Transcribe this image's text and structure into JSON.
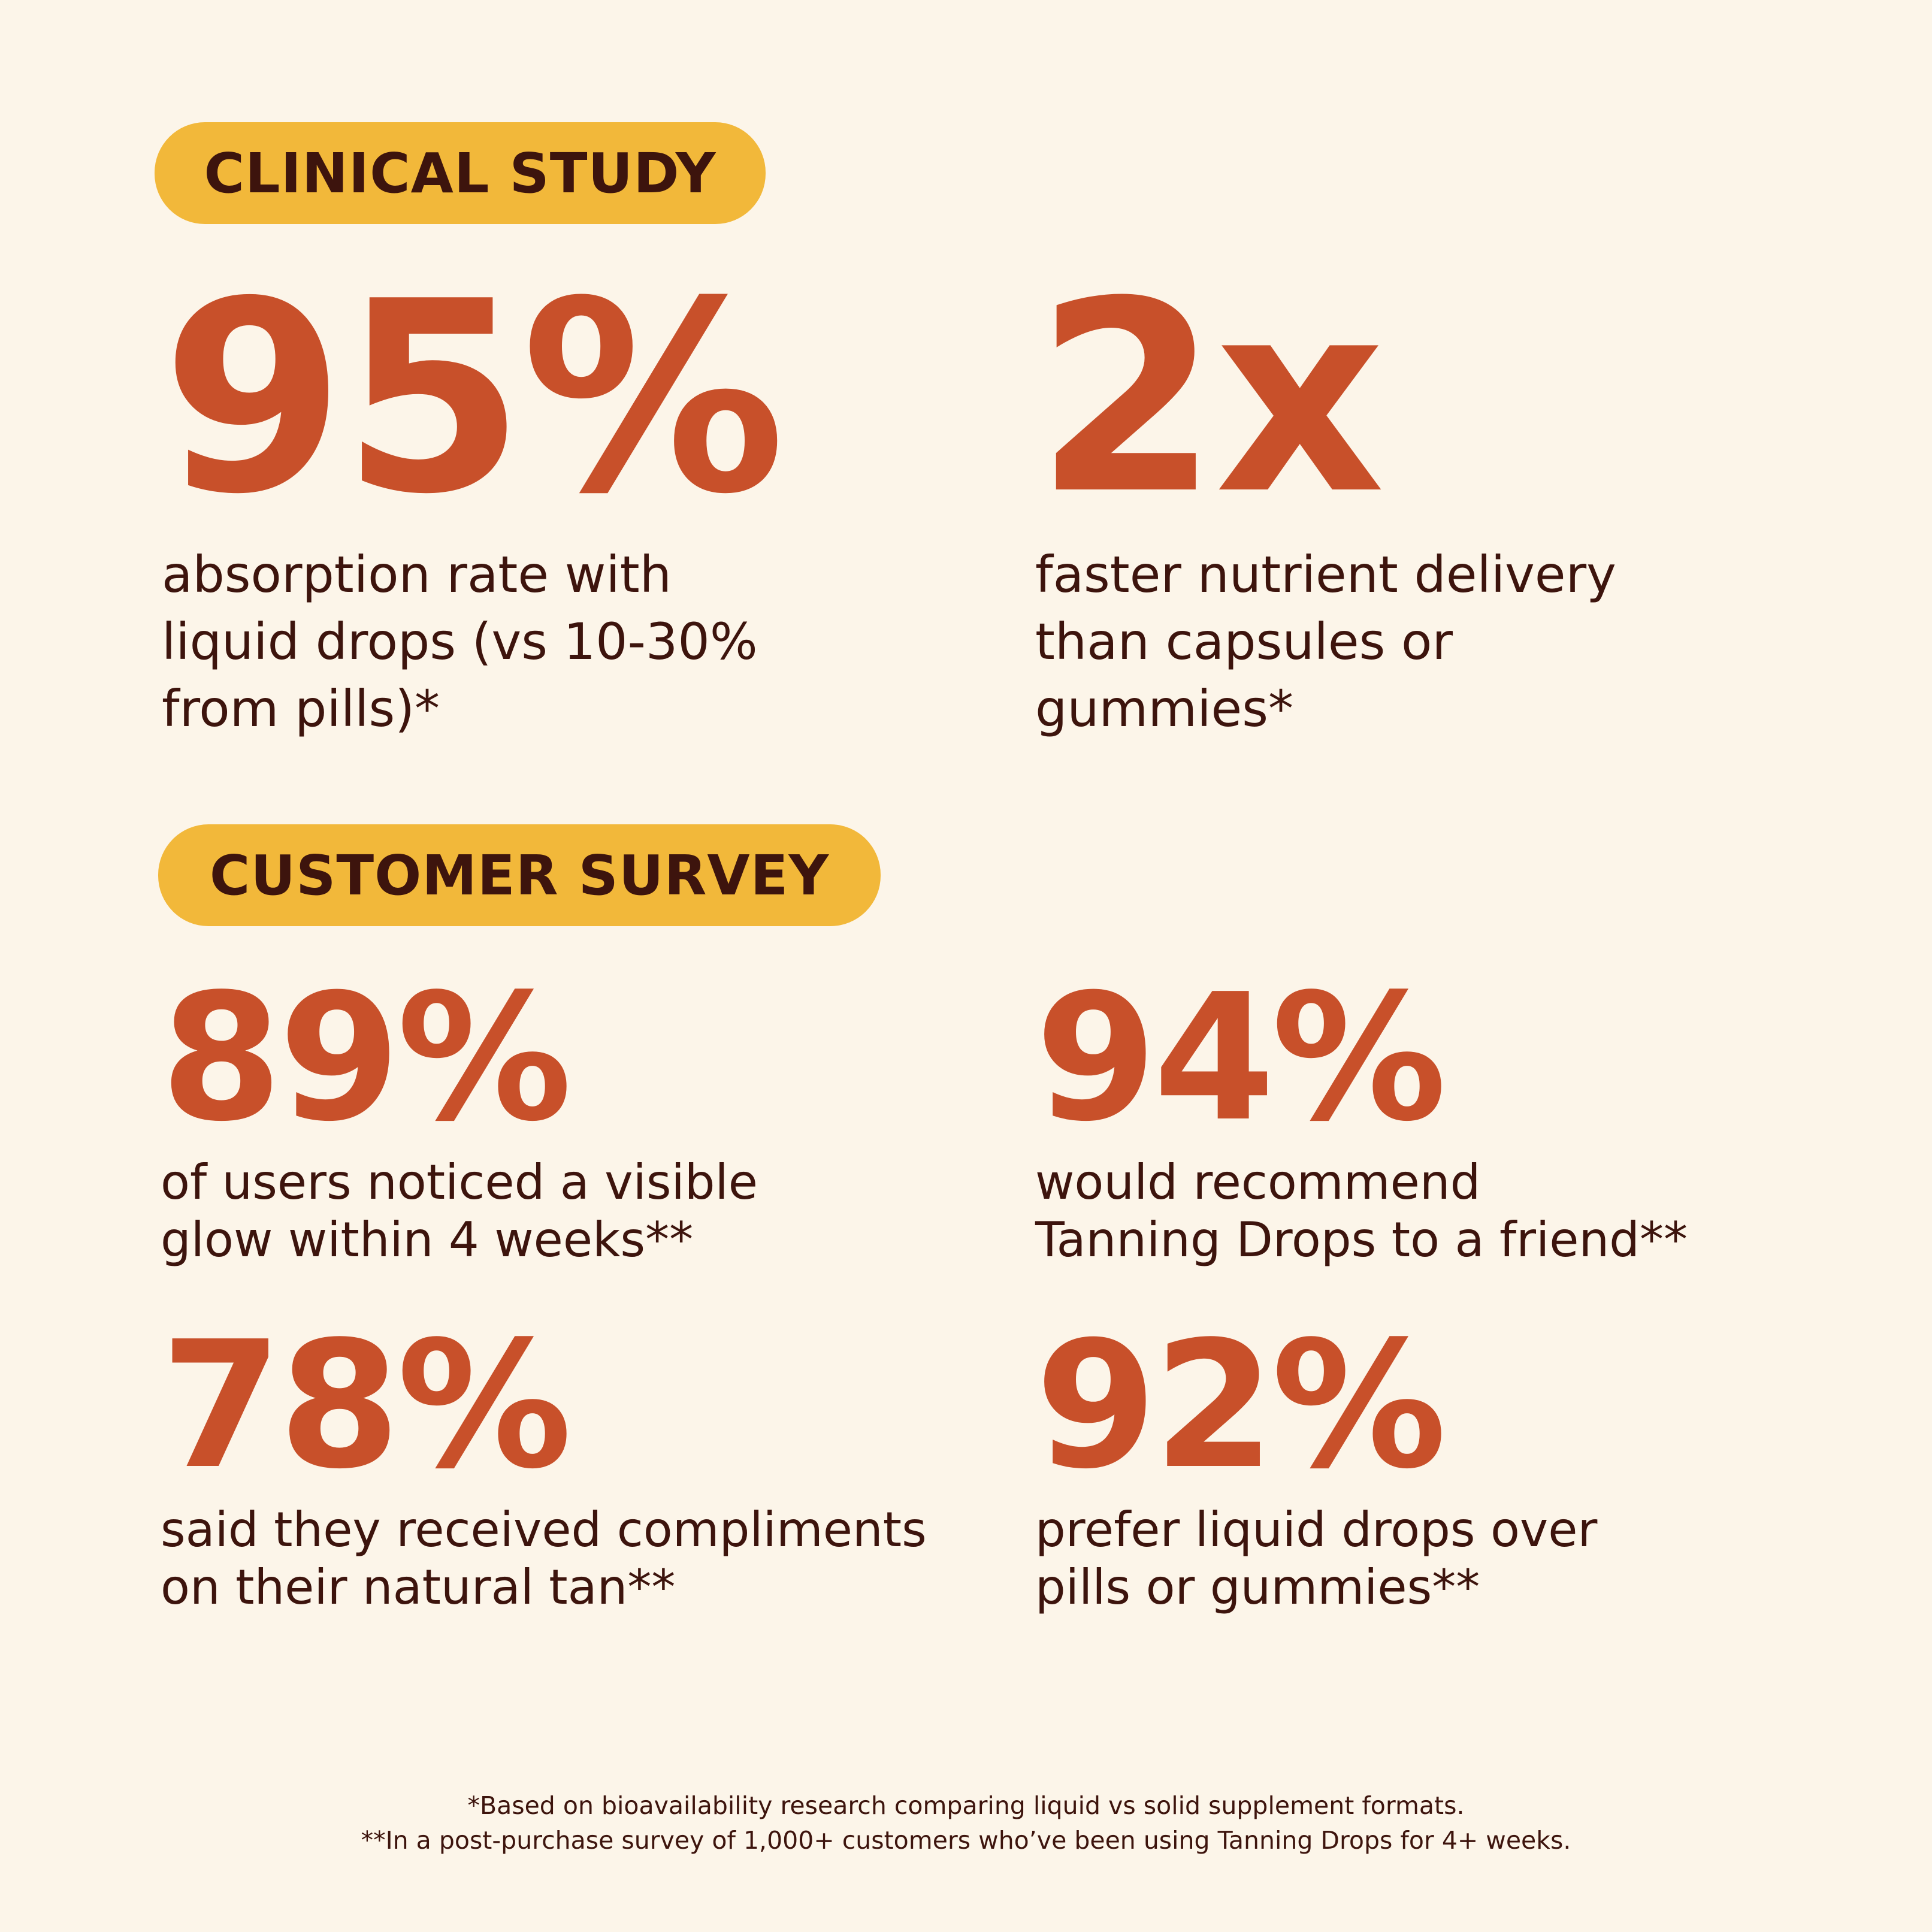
{
  "sections": {
    "clinical": {
      "label": "CLINICAL STUDY"
    },
    "survey": {
      "label": "CUSTOMER SURVEY"
    }
  },
  "stats": {
    "absorption": {
      "value": "95%",
      "desc": "absorption rate with\nliquid drops (vs 10-30%\nfrom pills)*"
    },
    "delivery": {
      "value": "2x",
      "desc": "faster nutrient delivery\nthan capsules or\ngummies*"
    },
    "glow": {
      "value": "89%",
      "desc": "of users noticed a visible\nglow within 4 weeks**"
    },
    "recommend": {
      "value": "94%",
      "desc": "would recommend\nTanning Drops to a friend**"
    },
    "compliments": {
      "value": "78%",
      "desc": "said they received compliments\non their natural tan**"
    },
    "prefer": {
      "value": "92%",
      "desc": "prefer liquid drops over\npills or gummies**"
    }
  },
  "footnotes": {
    "line1": "*Based on bioavailability research comparing liquid vs solid supplement formats.",
    "line2": "**In a post-purchase survey of 1,000+ customers who’ve been using Tanning Drops for 4+ weeks."
  },
  "colors": {
    "background": "#fcf5e9",
    "pill": "#f2b83a",
    "accent": "#c8502a",
    "text": "#3d140d"
  }
}
